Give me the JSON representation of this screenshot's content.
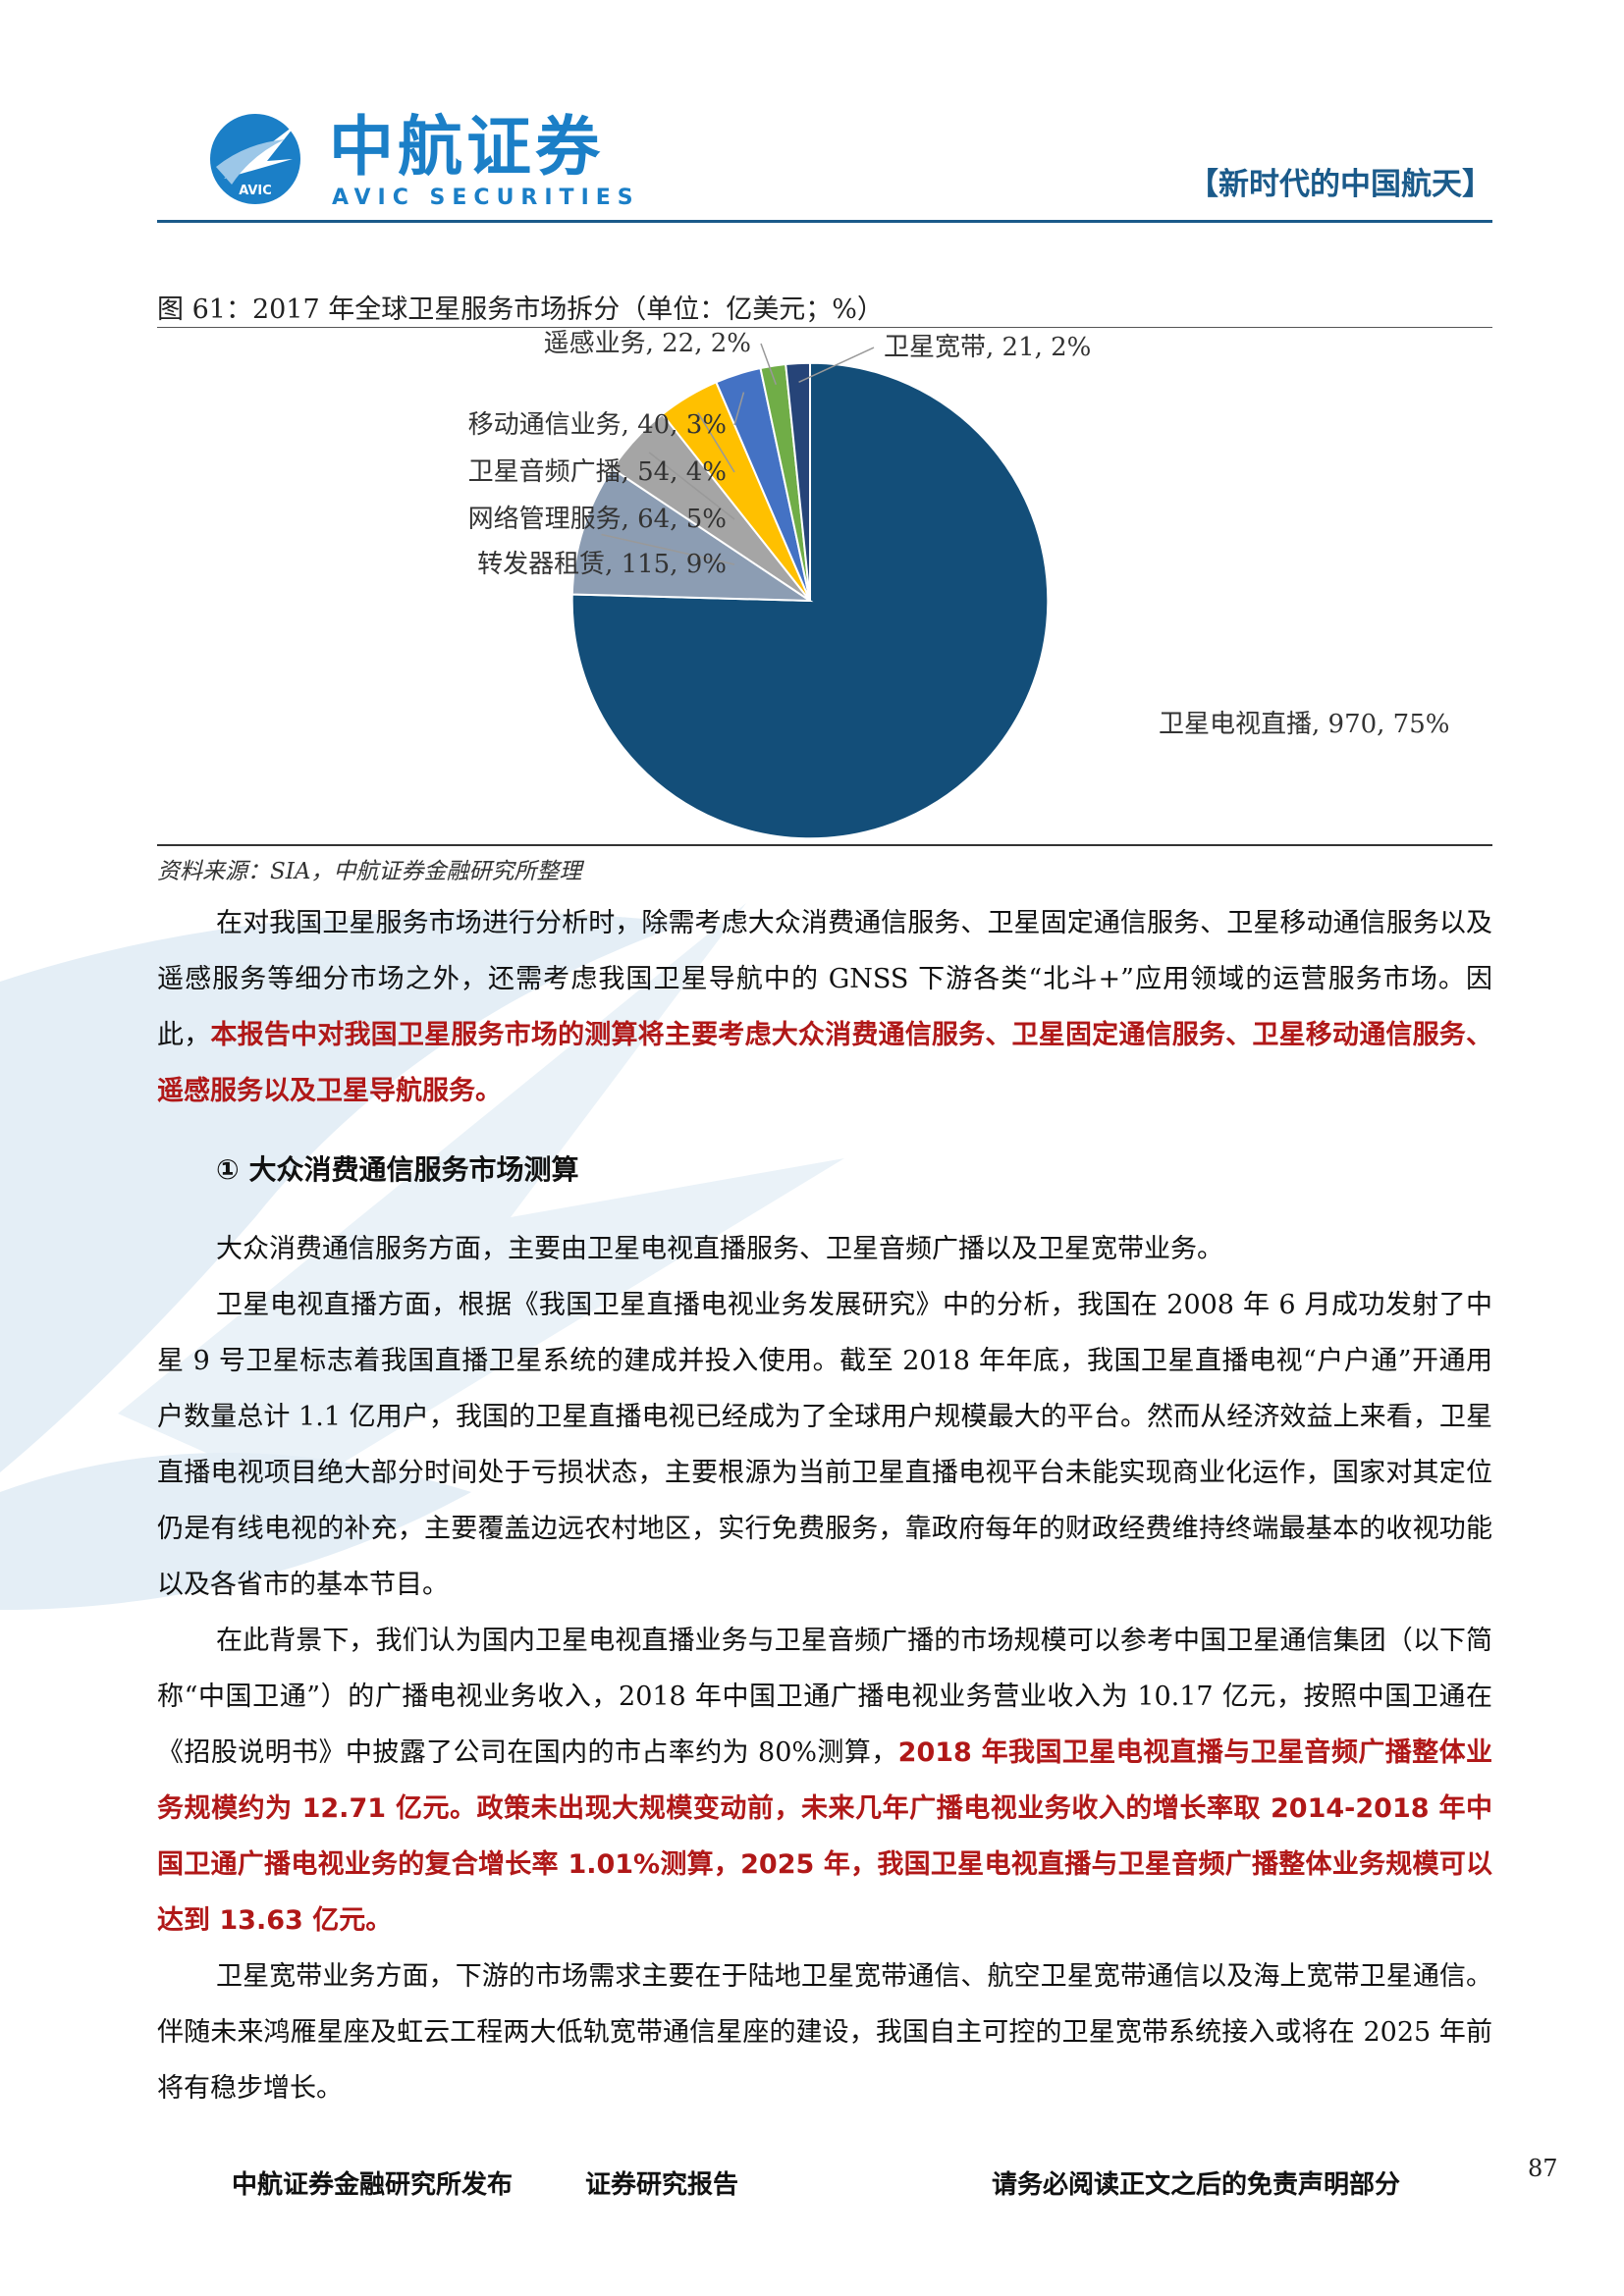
{
  "header": {
    "logo_cn": "中航证券",
    "logo_en": "AVIC SECURITIES",
    "logo_badge": "AVIC",
    "tag": "【新时代的中国航天】"
  },
  "figure": {
    "title": "图 61：2017 年全球卫星服务市场拆分（单位：亿美元；%）",
    "source": "资料来源：SIA，中航证券金融研究所整理"
  },
  "chart_data": {
    "type": "pie",
    "title": "2017 年全球卫星服务市场拆分（单位：亿美元；%）",
    "slices": [
      {
        "name": "卫星电视直播",
        "value": 970,
        "pct": 75,
        "label": "卫星电视直播, 970, 75%",
        "color": "#134e79"
      },
      {
        "name": "转发器租赁",
        "value": 115,
        "pct": 9,
        "label": "转发器租赁, 115, 9%",
        "color": "#8c9db3"
      },
      {
        "name": "网络管理服务",
        "value": 64,
        "pct": 5,
        "label": "网络管理服务, 64, 5%",
        "color": "#a5a5a5"
      },
      {
        "name": "卫星音频广播",
        "value": 54,
        "pct": 4,
        "label": "卫星音频广播, 54, 4%",
        "color": "#ffc000"
      },
      {
        "name": "移动通信业务",
        "value": 40,
        "pct": 3,
        "label": "移动通信业务, 40, 3%",
        "color": "#4472c4"
      },
      {
        "name": "遥感业务",
        "value": 22,
        "pct": 2,
        "label": "遥感业务, 22, 2%",
        "color": "#70ad47"
      },
      {
        "name": "卫星宽带",
        "value": 21,
        "pct": 2,
        "label": "卫星宽带, 21, 2%",
        "color": "#264478"
      }
    ]
  },
  "body": {
    "p1": "在对我国卫星服务市场进行分析时，除需考虑大众消费通信服务、卫星固定通信服务、卫星移动通信服务以及遥感服务等细分市场之外，还需考虑我国卫星导航中的 GNSS 下游各类“北斗+”应用领域的运营服务市场。因此，",
    "p1_red": "本报告中对我国卫星服务市场的测算将主要考虑大众消费通信服务、卫星固定通信服务、卫星移动通信服务、遥感服务以及卫星导航服务。",
    "subhead": "① 大众消费通信服务市场测算",
    "p2": "大众消费通信服务方面，主要由卫星电视直播服务、卫星音频广播以及卫星宽带业务。",
    "p3": "卫星电视直播方面，根据《我国卫星直播电视业务发展研究》中的分析，我国在 2008 年 6 月成功发射了中星 9 号卫星标志着我国直播卫星系统的建成并投入使用。截至 2018 年年底，我国卫星直播电视“户户通”开通用户数量总计 1.1 亿用户，我国的卫星直播电视已经成为了全球用户规模最大的平台。然而从经济效益上来看，卫星直播电视项目绝大部分时间处于亏损状态，主要根源为当前卫星直播电视平台未能实现商业化运作，国家对其定位仍是有线电视的补充，主要覆盖边远农村地区，实行免费服务，靠政府每年的财政经费维持终端最基本的收视功能以及各省市的基本节目。",
    "p4": "在此背景下，我们认为国内卫星电视直播业务与卫星音频广播的市场规模可以参考中国卫星通信集团（以下简称“中国卫通”）的广播电视业务收入，2018 年中国卫通广播电视业务营业收入为 10.17 亿元，按照中国卫通在《招股说明书》中披露了公司在国内的市占率约为 80%测算，",
    "p4_red": "2018 年我国卫星电视直播与卫星音频广播整体业务规模约为 12.71 亿元。政策未出现大规模变动前，未来几年广播电视业务收入的增长率取 2014-2018 年中国卫通广播电视业务的复合增长率 1.01%测算，2025 年，我国卫星电视直播与卫星音频广播整体业务规模可以达到 13.63 亿元。",
    "p5": "卫星宽带业务方面，下游的市场需求主要在于陆地卫星宽带通信、航空卫星宽带通信以及海上宽带卫星通信。伴随未来鸿雁星座及虹云工程两大低轨宽带通信星座的建设，我国自主可控的卫星宽带系统接入或将在 2025 年前将有稳步增长。"
  },
  "footer": {
    "publisher": "中航证券金融研究所发布",
    "report_type": "证券研究报告",
    "disclaimer": "请务必阅读正文之后的免责声明部分",
    "page": "87"
  }
}
